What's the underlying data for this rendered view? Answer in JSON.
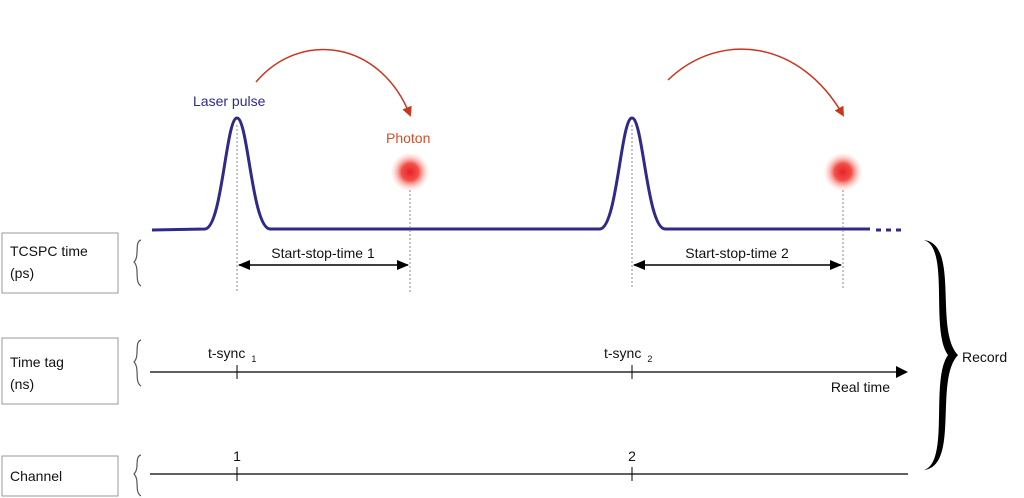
{
  "pulse_label": "Laser pulse",
  "photon_label": "Photon",
  "rows": [
    {
      "lines": [
        "TCSPC time",
        "(ps)"
      ]
    },
    {
      "lines": [
        "Time tag",
        "(ns)"
      ]
    },
    {
      "lines": [
        "Channel"
      ]
    }
  ],
  "intervals": [
    "Start-stop-time 1",
    "Start-stop-time 2"
  ],
  "syncs": [
    {
      "text": "t-sync",
      "sub": "1"
    },
    {
      "text": "t-sync",
      "sub": "2"
    }
  ],
  "axis_label": "Real time",
  "record": "Record",
  "channels": [
    "1",
    "2"
  ]
}
